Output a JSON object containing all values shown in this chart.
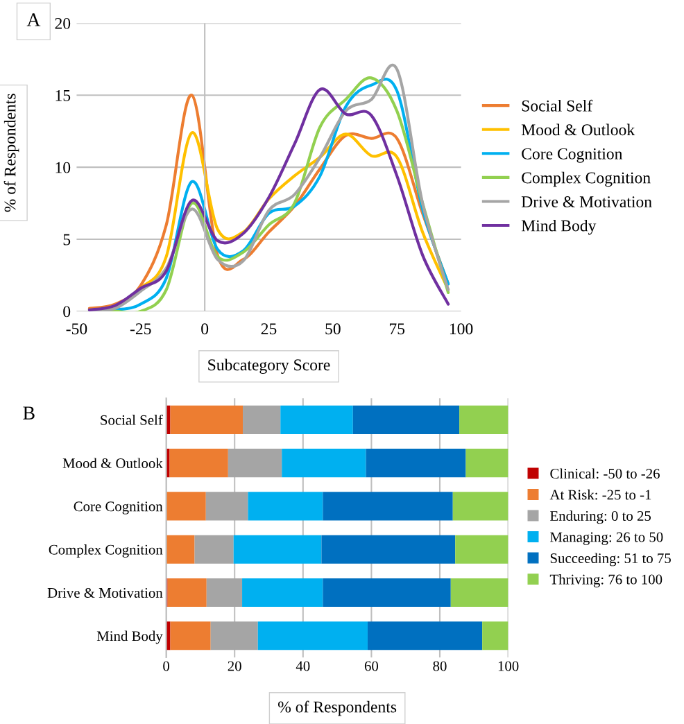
{
  "chart_data": [
    {
      "type": "line",
      "title": "A",
      "xlabel": "Subcategory Score",
      "ylabel": "% of Respondents",
      "x": [
        -45,
        -35,
        -25,
        -15,
        -5,
        5,
        15,
        25,
        35,
        45,
        55,
        65,
        75,
        85,
        95
      ],
      "xlim": [
        -50,
        100
      ],
      "xticks": [
        -50,
        -25,
        0,
        25,
        50,
        75,
        100
      ],
      "ylim": [
        0,
        20
      ],
      "yticks": [
        0,
        5,
        10,
        15,
        20
      ],
      "grid": "y",
      "ref_lines": [
        {
          "axis": "x",
          "value": 0,
          "color": "#bfbfbf"
        }
      ],
      "legend": "right",
      "marker": "none",
      "line_style": "solid",
      "series": [
        {
          "name": "Social Self",
          "color": "#ed7d31",
          "values": [
            0.2,
            0.5,
            1.8,
            6.0,
            15.0,
            3.9,
            3.6,
            5.5,
            7.3,
            9.9,
            12.2,
            12.0,
            12.0,
            6.8,
            1.9
          ]
        },
        {
          "name": "Mood & Outlook",
          "color": "#ffc000",
          "values": [
            0.1,
            0.4,
            1.6,
            3.8,
            12.4,
            5.7,
            5.5,
            7.8,
            9.4,
            10.7,
            12.3,
            10.8,
            10.7,
            5.5,
            1.5
          ]
        },
        {
          "name": "Core Cognition",
          "color": "#00b0f0",
          "values": [
            0.0,
            0.1,
            0.5,
            2.3,
            9.0,
            4.3,
            4.2,
            6.8,
            7.3,
            9.4,
            14.2,
            15.7,
            15.3,
            7.1,
            1.9
          ]
        },
        {
          "name": "Complex Cognition",
          "color": "#92d050",
          "values": [
            0.0,
            0.0,
            0.0,
            1.5,
            7.5,
            3.8,
            4.1,
            6.0,
            7.5,
            12.8,
            14.7,
            16.2,
            13.9,
            7.5,
            1.3
          ]
        },
        {
          "name": "Drive & Motivation",
          "color": "#a5a5a5",
          "values": [
            0.0,
            0.2,
            1.4,
            3.0,
            7.1,
            3.6,
            3.5,
            7.0,
            8.1,
            10.7,
            13.9,
            14.7,
            16.8,
            7.5,
            1.5
          ]
        },
        {
          "name": "Mind Body",
          "color": "#7030a0",
          "values": [
            0.1,
            0.4,
            1.6,
            2.8,
            7.7,
            4.9,
            5.4,
            7.9,
            11.6,
            15.4,
            13.7,
            13.6,
            9.4,
            3.9,
            0.5
          ]
        }
      ]
    },
    {
      "type": "bar",
      "title": "B",
      "xlabel": "% of Respondents",
      "orientation": "horizontal",
      "stacked": true,
      "categories": [
        "Social Self",
        "Mood & Outlook",
        "Core Cognition",
        "Complex Cognition",
        "Drive & Motivation",
        "Mind Body"
      ],
      "xlim": [
        0,
        100
      ],
      "xticks": [
        0,
        20,
        40,
        60,
        80,
        100
      ],
      "grid": "x",
      "legend": "right",
      "series": [
        {
          "name": "Clinical: -50 to -26",
          "color": "#c00000",
          "values": [
            1.2,
            1.0,
            0,
            0,
            0.4,
            1.2
          ]
        },
        {
          "name": "At Risk: -25 to -1",
          "color": "#ed7d31",
          "values": [
            21.2,
            17.1,
            11.6,
            8.3,
            11.4,
            11.8
          ]
        },
        {
          "name": "Enduring: 0 to 25",
          "color": "#a5a5a5",
          "values": [
            11.0,
            15.7,
            12.3,
            11.4,
            10.4,
            13.8
          ]
        },
        {
          "name": "Managing: 26 to 50",
          "color": "#00b0f0",
          "values": [
            21.2,
            24.6,
            21.9,
            25.7,
            23.6,
            32.1
          ]
        },
        {
          "name": "Succeeding: 51 to 75",
          "color": "#0070c0",
          "values": [
            31.1,
            29.2,
            38.0,
            39.1,
            37.4,
            33.5
          ]
        },
        {
          "name": "Thriving: 76 to 100",
          "color": "#92d050",
          "values": [
            14.3,
            12.4,
            16.2,
            15.5,
            16.8,
            7.6
          ]
        }
      ]
    }
  ]
}
